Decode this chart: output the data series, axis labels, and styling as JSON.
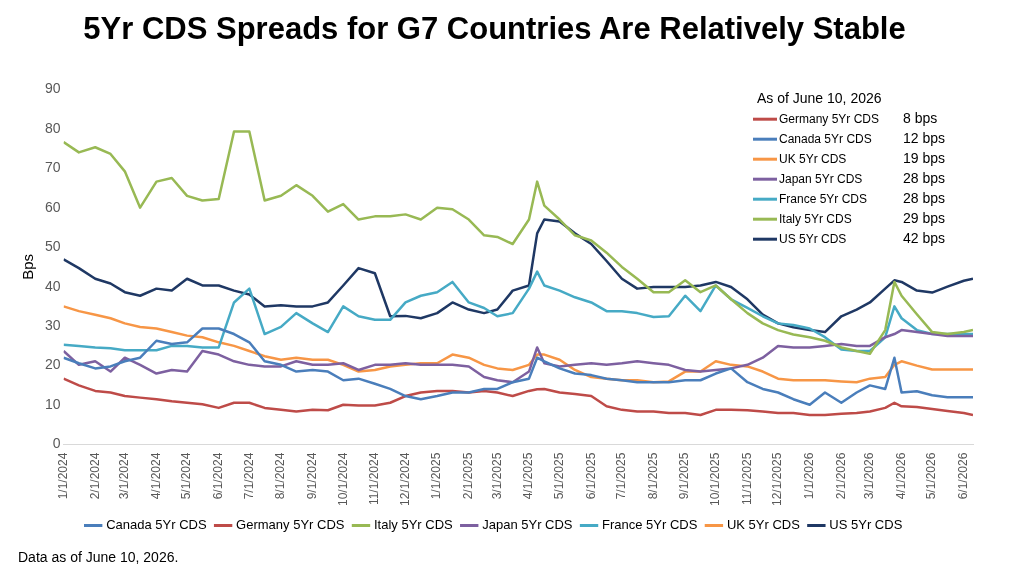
{
  "chart_data": {
    "type": "line",
    "title": "5Yr CDS Spreads for G7 Countries Are Relatively Stable",
    "ylabel": "Bps",
    "x": [
      "2024-01-01",
      "2024-01-16",
      "2024-02-01",
      "2024-02-16",
      "2024-03-01",
      "2024-03-16",
      "2024-04-01",
      "2024-04-16",
      "2024-05-01",
      "2024-05-16",
      "2024-06-01",
      "2024-06-16",
      "2024-07-01",
      "2024-07-16",
      "2024-08-01",
      "2024-08-16",
      "2024-09-01",
      "2024-09-16",
      "2024-10-01",
      "2024-10-16",
      "2024-11-01",
      "2024-11-16",
      "2024-12-01",
      "2024-12-16",
      "2025-01-01",
      "2025-01-16",
      "2025-02-01",
      "2025-02-16",
      "2025-03-01",
      "2025-03-16",
      "2025-04-01",
      "2025-04-09",
      "2025-04-16",
      "2025-05-01",
      "2025-05-16",
      "2025-06-01",
      "2025-06-16",
      "2025-07-01",
      "2025-07-16",
      "2025-08-01",
      "2025-08-16",
      "2025-09-01",
      "2025-09-16",
      "2025-10-01",
      "2025-10-16",
      "2025-11-01",
      "2025-11-16",
      "2025-12-01",
      "2025-12-16",
      "2026-01-01",
      "2026-01-16",
      "2026-02-01",
      "2026-02-16",
      "2026-03-01",
      "2026-03-16",
      "2026-03-25",
      "2026-04-01",
      "2026-04-16",
      "2026-05-01",
      "2026-05-16",
      "2026-06-01",
      "2026-06-10"
    ],
    "series": [
      {
        "name": "Canada 5Yr CDS",
        "color": "#4a7ebb",
        "values": [
          22,
          20.6,
          19.3,
          19.8,
          21.1,
          22,
          26.3,
          25.5,
          25.9,
          29.4,
          29.4,
          28,
          25.9,
          21.1,
          20.2,
          18.5,
          18.9,
          18.5,
          16.3,
          16.7,
          15.4,
          14.1,
          12.3,
          11.5,
          12.3,
          13.2,
          13.2,
          14.1,
          14.1,
          15.8,
          16.7,
          22,
          21.1,
          19.3,
          18,
          17.6,
          16.7,
          16.3,
          15.8,
          15.8,
          15.8,
          16.3,
          16.3,
          18,
          19.3,
          15.8,
          14.1,
          13.2,
          11.5,
          10.1,
          13.2,
          10.6,
          13.2,
          15,
          14.1,
          22,
          13.2,
          13.5,
          12.5,
          12,
          12,
          12
        ]
      },
      {
        "name": "Germany 5Yr CDS",
        "color": "#be4b48",
        "values": [
          16.7,
          15,
          13.6,
          13.2,
          12.3,
          11.9,
          11.5,
          11,
          10.6,
          10.2,
          9.3,
          10.6,
          10.6,
          9.3,
          8.8,
          8.4,
          8.8,
          8.7,
          10.1,
          9.9,
          9.9,
          10.6,
          12.3,
          13.2,
          13.6,
          13.6,
          13.2,
          13.6,
          13.2,
          12.3,
          13.6,
          14,
          14.1,
          13.2,
          12.8,
          12.3,
          9.7,
          8.8,
          8.4,
          8.4,
          8,
          8,
          7.5,
          8.8,
          8.8,
          8.7,
          8.4,
          8,
          8,
          7.5,
          7.5,
          7.8,
          8,
          8.4,
          9.3,
          10.6,
          9.7,
          9.5,
          9,
          8.5,
          8,
          7.5
        ]
      },
      {
        "name": "Italy 5Yr CDS",
        "color": "#98b954",
        "values": [
          76.6,
          74,
          75.3,
          73.6,
          69.2,
          60,
          66.6,
          67.5,
          63,
          61.8,
          62.2,
          79.3,
          79.3,
          61.8,
          63,
          65.7,
          63,
          59,
          60.9,
          57,
          57.8,
          57.8,
          58.3,
          57,
          60,
          59.6,
          57,
          53,
          52.6,
          50.8,
          57,
          66.6,
          60.5,
          57,
          53,
          51.7,
          48.6,
          45,
          42,
          38.6,
          38.6,
          41.6,
          38.6,
          40.3,
          36.8,
          33.3,
          30.7,
          29,
          27.9,
          27.2,
          26.3,
          24.6,
          23.7,
          23,
          29,
          41.2,
          37.7,
          33,
          28.5,
          28,
          28.5,
          29
        ]
      },
      {
        "name": "Japan 5Yr CDS",
        "color": "#7d60a0",
        "values": [
          23.7,
          20.2,
          21.1,
          18.5,
          22,
          20.2,
          18,
          18.9,
          18.5,
          23.7,
          22.8,
          21.1,
          20.2,
          19.8,
          19.8,
          21.1,
          20.2,
          20.2,
          20.6,
          18.9,
          20.2,
          20.2,
          20.6,
          20.2,
          20.2,
          20.2,
          19.8,
          17.1,
          16.3,
          15.8,
          18.5,
          24.6,
          20.6,
          19.8,
          20.2,
          20.6,
          20.2,
          20.6,
          21.1,
          20.6,
          20.2,
          18.9,
          18.5,
          18.9,
          19.3,
          20.2,
          22,
          25,
          24.6,
          24.6,
          25,
          25.5,
          25,
          25,
          27.2,
          28,
          29,
          28.5,
          28,
          27.5,
          27.5,
          27.5
        ]
      },
      {
        "name": "France 5Yr CDS",
        "color": "#46aac5",
        "values": [
          25.3,
          25,
          24.6,
          24.4,
          23.9,
          23.9,
          23.9,
          25,
          25,
          24.6,
          24.6,
          36,
          39.5,
          28,
          29.8,
          33.3,
          30.7,
          28.5,
          35,
          32.5,
          31.6,
          31.6,
          36,
          37.7,
          38.6,
          41.2,
          36,
          34.6,
          32.5,
          33.3,
          39.5,
          43.8,
          40.3,
          39,
          37.3,
          36,
          33.8,
          33.8,
          33.3,
          32.3,
          32.5,
          37.7,
          33.8,
          40.3,
          36.8,
          34.6,
          32.5,
          30.7,
          30.3,
          29.4,
          27.2,
          24.1,
          23.7,
          23.7,
          27.2,
          35,
          32,
          29,
          28,
          28,
          28,
          28
        ]
      },
      {
        "name": "UK 5Yr CDS",
        "color": "#f79646",
        "values": [
          35,
          33.8,
          32.9,
          32,
          30.7,
          29.8,
          29.4,
          28.5,
          27.6,
          27.2,
          25.9,
          25,
          23.7,
          22.4,
          21.5,
          22,
          21.5,
          21.5,
          20.2,
          18.5,
          18.9,
          19.8,
          20.2,
          20.6,
          20.6,
          22.8,
          22,
          20.2,
          19.3,
          18.9,
          20.2,
          22.8,
          22.8,
          21.5,
          18.9,
          17.1,
          16.7,
          16.3,
          16.3,
          15.8,
          16,
          18.5,
          18.5,
          21.1,
          20.2,
          19.8,
          18.5,
          16.7,
          16.3,
          16.3,
          16.3,
          16,
          15.8,
          16.7,
          17.1,
          20.2,
          21.1,
          20,
          19,
          19,
          19,
          19
        ]
      },
      {
        "name": "US 5Yr CDS",
        "color": "#1f3864",
        "values": [
          46.9,
          44.7,
          42,
          40.8,
          38.6,
          37.7,
          39.5,
          39,
          42,
          40.3,
          40.3,
          39,
          38,
          35,
          35.3,
          35,
          35,
          36,
          40.3,
          44.7,
          43.4,
          32.5,
          32.6,
          32,
          33.3,
          36,
          34.2,
          33.3,
          34.2,
          39,
          40.3,
          53.5,
          57,
          56.5,
          53.5,
          50.8,
          46.5,
          42,
          39.5,
          39.9,
          39.9,
          39.9,
          40.3,
          41.2,
          39.9,
          36.8,
          32.9,
          30.7,
          29.7,
          29,
          28.5,
          32.5,
          34.2,
          36,
          39.5,
          41.6,
          41.2,
          39,
          38.5,
          40,
          41.5,
          42
        ]
      }
    ],
    "xlim": [
      "2024-01-01",
      "2026-06-10"
    ],
    "xticks": [
      {
        "value": "2024-01-01",
        "label": "1/1/2024"
      },
      {
        "value": "2024-02-01",
        "label": "2/1/2024"
      },
      {
        "value": "2024-03-01",
        "label": "3/1/2024"
      },
      {
        "value": "2024-04-01",
        "label": "4/1/2024"
      },
      {
        "value": "2024-05-01",
        "label": "5/1/2024"
      },
      {
        "value": "2024-06-01",
        "label": "6/1/2024"
      },
      {
        "value": "2024-07-01",
        "label": "7/1/2024"
      },
      {
        "value": "2024-08-01",
        "label": "8/1/2024"
      },
      {
        "value": "2024-09-01",
        "label": "9/1/2024"
      },
      {
        "value": "2024-10-01",
        "label": "10/1/2024"
      },
      {
        "value": "2024-11-01",
        "label": "11/1/2024"
      },
      {
        "value": "2024-12-01",
        "label": "12/1/2024"
      },
      {
        "value": "2025-01-01",
        "label": "1/1/2025"
      },
      {
        "value": "2025-02-01",
        "label": "2/1/2025"
      },
      {
        "value": "2025-03-01",
        "label": "3/1/2025"
      },
      {
        "value": "2025-04-01",
        "label": "4/1/2025"
      },
      {
        "value": "2025-05-01",
        "label": "5/1/2025"
      },
      {
        "value": "2025-06-01",
        "label": "6/1/2025"
      },
      {
        "value": "2025-07-01",
        "label": "7/1/2025"
      },
      {
        "value": "2025-08-01",
        "label": "8/1/2025"
      },
      {
        "value": "2025-09-01",
        "label": "9/1/2025"
      },
      {
        "value": "2025-10-01",
        "label": "10/1/2025"
      },
      {
        "value": "2025-11-01",
        "label": "11/1/2025"
      },
      {
        "value": "2025-12-01",
        "label": "12/1/2025"
      },
      {
        "value": "2026-01-01",
        "label": "1/1/2026"
      },
      {
        "value": "2026-02-01",
        "label": "2/1/2026"
      },
      {
        "value": "2026-03-01",
        "label": "3/1/2026"
      },
      {
        "value": "2026-04-01",
        "label": "4/1/2026"
      },
      {
        "value": "2026-05-01",
        "label": "5/1/2026"
      },
      {
        "value": "2026-06-01",
        "label": "6/1/2026"
      }
    ],
    "ylim": [
      0,
      90
    ],
    "yticks": [
      0,
      10,
      20,
      30,
      40,
      50,
      60,
      70,
      80,
      90
    ],
    "grid": false,
    "legend": "bottom",
    "marker": "none",
    "line_style": "solid",
    "annotations": [
      "Data as of June 10, 2026.",
      "As of June 10, 2026",
      "Germany 5Yr CDS",
      "8 bps",
      "Canada 5Yr CDS",
      "12 bps",
      "UK 5Yr CDS",
      "19 bps",
      "Japan 5Yr CDS",
      "28 bps",
      "France 5Yr CDS",
      "28 bps",
      "Italy 5Yr CDS",
      "29 bps",
      "US 5Yr CDS",
      "42 bps"
    ]
  }
}
